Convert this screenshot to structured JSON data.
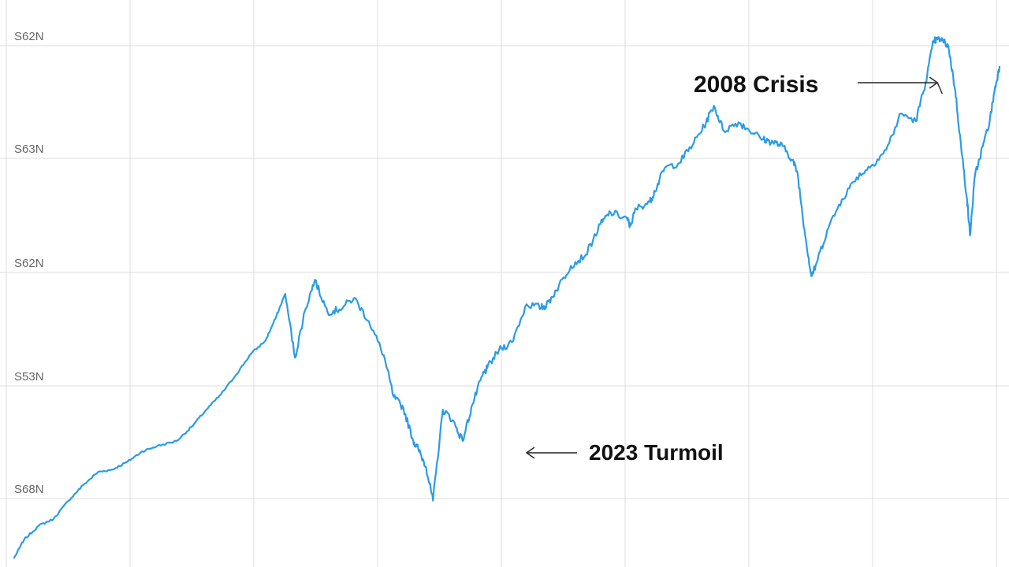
{
  "chart_data": {
    "type": "line",
    "title": "",
    "xlabel": "",
    "ylabel": "",
    "y_tick_labels": [
      "S62N",
      "S63N",
      "S62N",
      "S53N",
      "S68N"
    ],
    "grid": true,
    "legend": "none",
    "x_range": [
      0,
      1000
    ],
    "ylim": [
      0,
      1000
    ],
    "series": [
      {
        "color": "#2b9be6",
        "points": [
          [
            0,
            10
          ],
          [
            10,
            45
          ],
          [
            25,
            72
          ],
          [
            40,
            85
          ],
          [
            55,
            120
          ],
          [
            70,
            150
          ],
          [
            85,
            175
          ],
          [
            100,
            180
          ],
          [
            115,
            195
          ],
          [
            130,
            215
          ],
          [
            145,
            225
          ],
          [
            165,
            235
          ],
          [
            180,
            262
          ],
          [
            195,
            295
          ],
          [
            210,
            325
          ],
          [
            225,
            362
          ],
          [
            240,
            402
          ],
          [
            255,
            428
          ],
          [
            265,
            470
          ],
          [
            275,
            518
          ],
          [
            285,
            395
          ],
          [
            295,
            485
          ],
          [
            305,
            545
          ],
          [
            318,
            483
          ],
          [
            330,
            488
          ],
          [
            345,
            510
          ],
          [
            360,
            465
          ],
          [
            375,
            400
          ],
          [
            385,
            320
          ],
          [
            395,
            298
          ],
          [
            405,
            235
          ],
          [
            410,
            220
          ],
          [
            418,
            185
          ],
          [
            425,
            120
          ],
          [
            435,
            295
          ],
          [
            445,
            275
          ],
          [
            455,
            235
          ],
          [
            465,
            305
          ],
          [
            475,
            360
          ],
          [
            480,
            375
          ],
          [
            492,
            410
          ],
          [
            505,
            425
          ],
          [
            520,
            498
          ],
          [
            535,
            492
          ],
          [
            540,
            495
          ],
          [
            550,
            525
          ],
          [
            565,
            572
          ],
          [
            580,
            593
          ],
          [
            595,
            652
          ],
          [
            605,
            675
          ],
          [
            622,
            663
          ],
          [
            625,
            648
          ],
          [
            631,
            682
          ],
          [
            645,
            695
          ],
          [
            650,
            715
          ],
          [
            660,
            760
          ],
          [
            675,
            770
          ],
          [
            690,
            810
          ],
          [
            700,
            840
          ],
          [
            710,
            880
          ],
          [
            720,
            832
          ],
          [
            735,
            848
          ],
          [
            745,
            835
          ],
          [
            760,
            815
          ],
          [
            770,
            810
          ],
          [
            780,
            802
          ],
          [
            790,
            775
          ],
          [
            795,
            750
          ],
          [
            802,
            642
          ],
          [
            809,
            552
          ],
          [
            813,
            570
          ],
          [
            825,
            640
          ],
          [
            840,
            700
          ],
          [
            855,
            742
          ],
          [
            870,
            765
          ],
          [
            885,
            795
          ],
          [
            900,
            865
          ],
          [
            915,
            850
          ],
          [
            925,
            925
          ],
          [
            933,
            1005
          ],
          [
            940,
            1008
          ],
          [
            948,
            995
          ],
          [
            955,
            910
          ],
          [
            961,
            800
          ],
          [
            967,
            700
          ],
          [
            970,
            630
          ],
          [
            975,
            745
          ],
          [
            983,
            802
          ],
          [
            990,
            850
          ],
          [
            995,
            910
          ],
          [
            1000,
            955
          ]
        ]
      }
    ],
    "annotations": [
      {
        "text": "2008 Crisis",
        "x": 937,
        "y": 970
      },
      {
        "text": "2023 Turmoil",
        "x": 522,
        "y": 652
      }
    ]
  }
}
